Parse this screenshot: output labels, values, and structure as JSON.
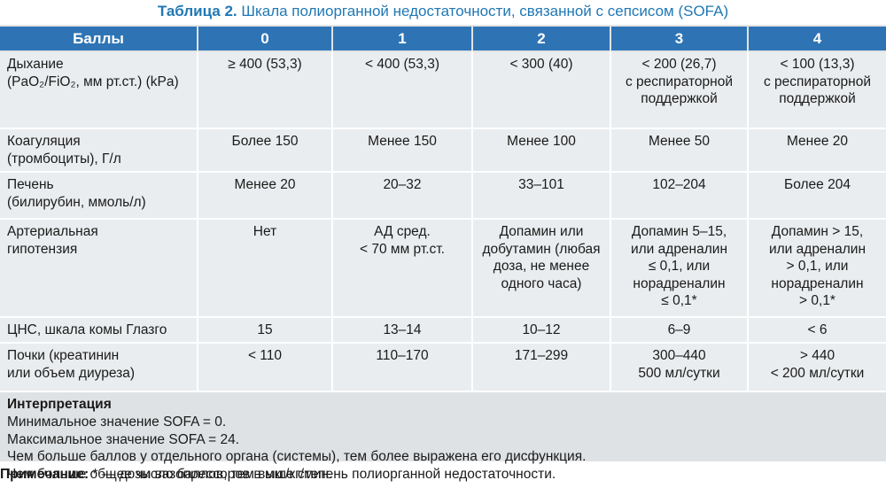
{
  "title": {
    "label": "Таблица 2.",
    "text": "Шкала полиорганной недостаточности, связанной с сепсисом (SOFA)"
  },
  "header": [
    "Баллы",
    "0",
    "1",
    "2",
    "3",
    "4"
  ],
  "rows": [
    {
      "label": [
        "Дыхание",
        "(PaO₂/FiO₂, мм рт.ст.) (kPa)"
      ],
      "values": [
        [
          "≥ 400 (53,3)"
        ],
        [
          "< 400 (53,3)"
        ],
        [
          "< 300 (40)"
        ],
        [
          "< 200 (26,7)",
          "с респираторной",
          "поддержкой"
        ],
        [
          "< 100 (13,3)",
          "с респираторной",
          "поддержкой"
        ]
      ]
    },
    {
      "label": [
        "Коагуляция",
        "(тромбоциты), Г/л"
      ],
      "values": [
        [
          "Более 150"
        ],
        [
          "Менее 150"
        ],
        [
          "Менее 100"
        ],
        [
          "Менее 50"
        ],
        [
          "Менее 20"
        ]
      ]
    },
    {
      "label": [
        "Печень",
        "(билирубин, ммоль/л)"
      ],
      "values": [
        [
          "Менее 20"
        ],
        [
          "20–32"
        ],
        [
          "33–101"
        ],
        [
          "102–204"
        ],
        [
          "Более 204"
        ]
      ]
    },
    {
      "label": [
        "Артериальная",
        "гипотензия"
      ],
      "values": [
        [
          "Нет"
        ],
        [
          "АД сред.",
          "< 70 мм рт.ст."
        ],
        [
          "Допамин или",
          "добутамин (любая",
          "доза, не менее",
          "одного часа)"
        ],
        [
          "Допамин 5–15,",
          "или адреналин",
          "≤ 0,1, или",
          "норадреналин",
          "≤ 0,1*"
        ],
        [
          "Допамин > 15,",
          "или адреналин",
          "> 0,1, или",
          "норадреналин",
          "> 0,1*"
        ]
      ]
    },
    {
      "label": [
        "ЦНС, шкала комы Глазго"
      ],
      "values": [
        [
          "15"
        ],
        [
          "13–14"
        ],
        [
          "10–12"
        ],
        [
          "6–9"
        ],
        [
          "< 6"
        ]
      ]
    },
    {
      "label": [
        "Почки (креатинин",
        "или объем диуреза)"
      ],
      "values": [
        [
          "< 110"
        ],
        [
          "110–170"
        ],
        [
          "171–299"
        ],
        [
          "300–440",
          "500 мл/сутки"
        ],
        [
          "> 440",
          "< 200 мл/сутки"
        ]
      ]
    }
  ],
  "interpretation": {
    "heading": "Интерпретация",
    "lines": [
      "Минимальное значение SOFA = 0.",
      "Максимальное значение SOFA = 24.",
      "Чем больше баллов у отдельного органа (системы), тем более выражена его дисфункция.",
      "Чем больше общее число баллов, тем выше степень полиорганной недостаточности."
    ]
  },
  "note": {
    "label": "Примечание:",
    "text": "* — дозы вазопрессоров в мкг/кг/мин."
  },
  "colors": {
    "title": "#1f78b4",
    "header_bg": "#2e74b5",
    "header_text": "#ffffff",
    "row_bg": "#eaedef",
    "interpretation_bg": "#dfe2e4"
  }
}
